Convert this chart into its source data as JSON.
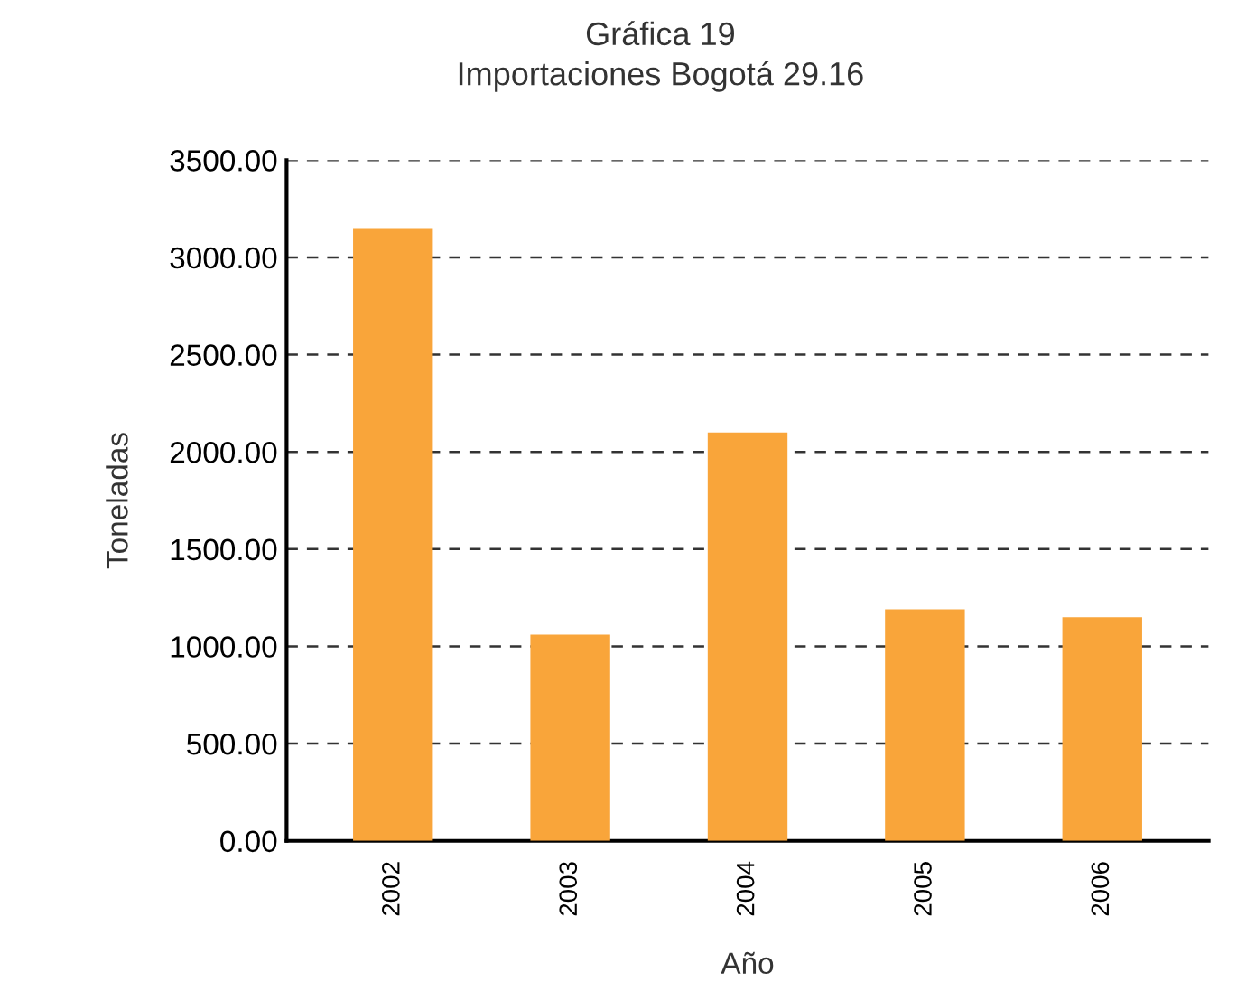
{
  "chart_data": {
    "type": "bar",
    "title": "Gráfica 19",
    "subtitle": "Importaciones Bogotá 29.16",
    "xlabel": "Año",
    "ylabel": "Toneladas",
    "categories": [
      "2002",
      "2003",
      "2004",
      "2005",
      "2006"
    ],
    "values": [
      3150,
      1060,
      2100,
      1190,
      1150
    ],
    "color": "#f9a53a",
    "ylim": [
      0,
      3500
    ],
    "yticks": [
      {
        "value": 0,
        "label": "0.00"
      },
      {
        "value": 500,
        "label": "500.00"
      },
      {
        "value": 1000,
        "label": "1000.00"
      },
      {
        "value": 1500,
        "label": "1500.00"
      },
      {
        "value": 2000,
        "label": "2000.00"
      },
      {
        "value": 2500,
        "label": "2500.00"
      },
      {
        "value": 3000,
        "label": "3000.00"
      },
      {
        "value": 3500,
        "label": "3500.00"
      }
    ],
    "grid": "y",
    "line_style": "dashed"
  }
}
